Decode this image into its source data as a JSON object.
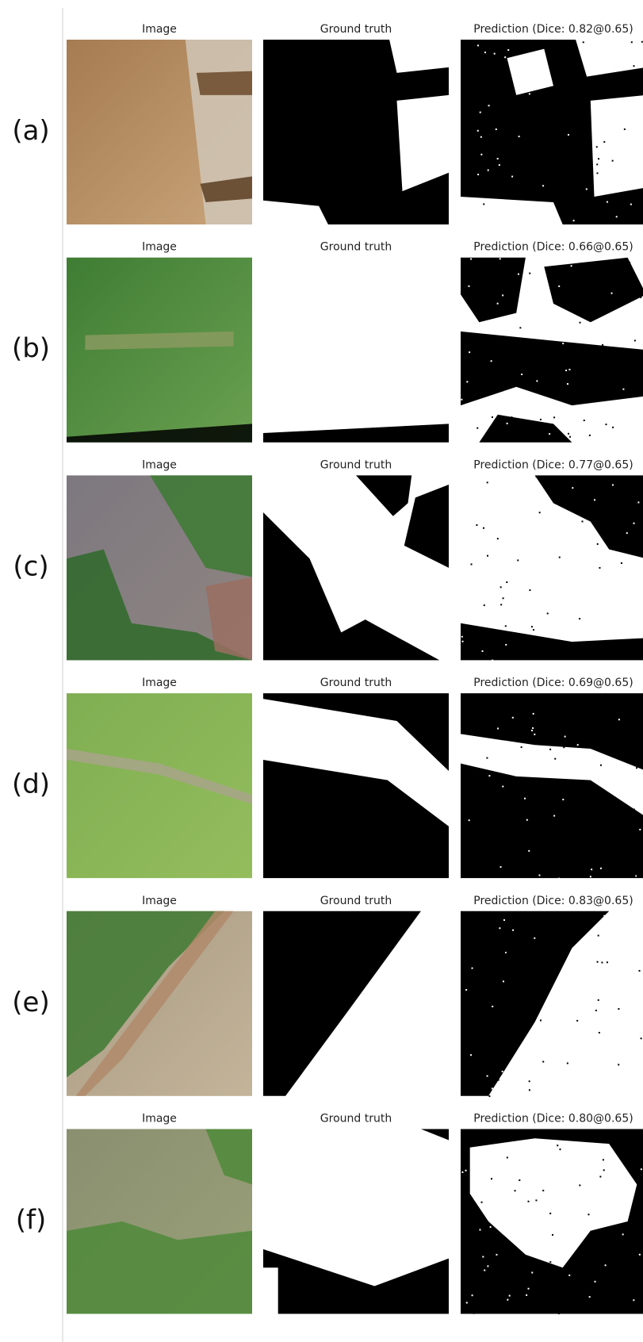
{
  "rows": [
    {
      "label": "(a)",
      "image_title": "Image",
      "gt_title": "Ground truth",
      "pred_title": "Prediction (Dice: 0.82@0.65)"
    },
    {
      "label": "(b)",
      "image_title": "Image",
      "gt_title": "Ground truth",
      "pred_title": "Prediction (Dice: 0.66@0.65)"
    },
    {
      "label": "(c)",
      "image_title": "Image",
      "gt_title": "Ground truth",
      "pred_title": "Prediction (Dice: 0.77@0.65)"
    },
    {
      "label": "(d)",
      "image_title": "Image",
      "gt_title": "Ground truth",
      "pred_title": "Prediction (Dice: 0.69@0.65)"
    },
    {
      "label": "(e)",
      "image_title": "Image",
      "gt_title": "Ground truth",
      "pred_title": "Prediction (Dice: 0.83@0.65)"
    },
    {
      "label": "(f)",
      "image_title": "Image",
      "gt_title": "Ground truth",
      "pred_title": "Prediction (Dice: 0.80@0.65)"
    }
  ]
}
